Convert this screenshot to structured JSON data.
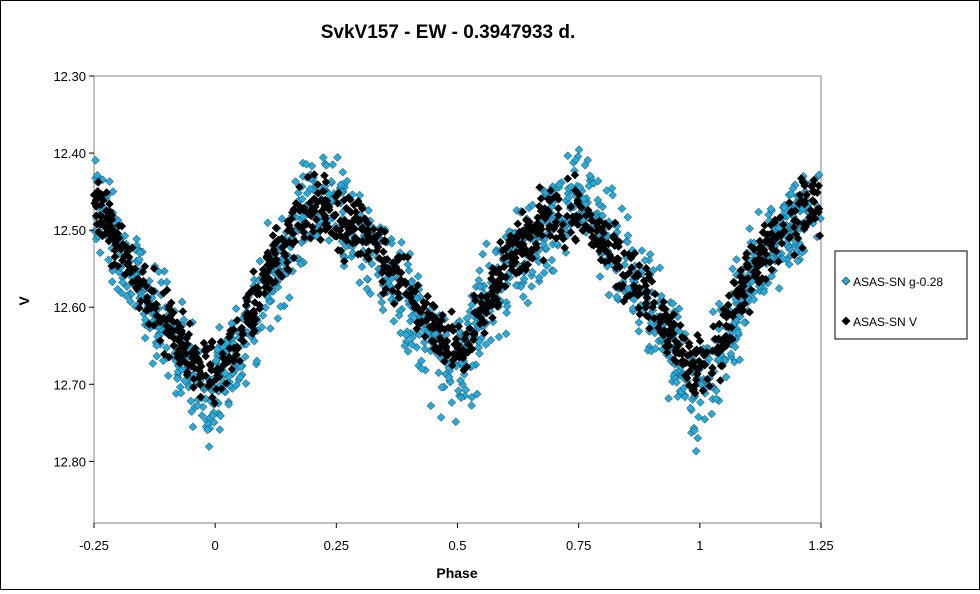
{
  "chart_data": {
    "type": "scatter",
    "title": "SvkV157 - EW - 0.3947933  d.",
    "xlabel": "Phase",
    "ylabel": "V",
    "xlim": [
      -0.25,
      1.25
    ],
    "ylim": [
      12.3,
      12.88
    ],
    "y_inverted": true,
    "grid": false,
    "legend_position": "right",
    "x_ticks": [
      "-0.25",
      "0",
      "0.25",
      "0.5",
      "0.75",
      "1",
      "1.25"
    ],
    "x_tick_values": [
      -0.25,
      0,
      0.25,
      0.5,
      0.75,
      1,
      1.25
    ],
    "y_ticks": [
      "12.30",
      "12.40",
      "12.50",
      "12.60",
      "12.70",
      "12.80"
    ],
    "y_tick_values": [
      12.3,
      12.4,
      12.5,
      12.6,
      12.7,
      12.8
    ],
    "series": [
      {
        "name": "ASAS-SN g-0.28",
        "color": "#29a9d8",
        "marker": "diamond",
        "x": [
          -0.25,
          -0.22,
          -0.19,
          -0.16,
          -0.13,
          -0.1,
          -0.08,
          -0.06,
          -0.04,
          -0.02,
          0.0,
          0.02,
          0.04,
          0.06,
          0.08,
          0.1,
          0.12,
          0.15,
          0.18,
          0.2,
          0.22,
          0.25,
          0.27,
          0.3,
          0.32,
          0.35,
          0.38,
          0.4,
          0.42,
          0.44,
          0.46,
          0.48,
          0.5,
          0.52,
          0.54,
          0.56,
          0.58,
          0.6,
          0.62,
          0.65,
          0.68,
          0.7,
          0.72,
          0.75,
          0.77,
          0.8,
          0.82,
          0.85,
          0.88,
          0.9,
          0.92,
          0.94,
          0.96,
          0.98,
          1.0,
          1.02,
          1.04,
          1.06,
          1.08,
          1.1,
          1.12,
          1.15,
          1.18,
          1.2,
          1.22,
          1.25
        ],
        "y": [
          12.46,
          12.5,
          12.54,
          12.56,
          12.6,
          12.63,
          12.65,
          12.67,
          12.7,
          12.72,
          12.7,
          12.69,
          12.66,
          12.64,
          12.61,
          12.58,
          12.55,
          12.52,
          12.48,
          12.46,
          12.47,
          12.45,
          12.48,
          12.5,
          12.52,
          12.55,
          12.57,
          12.6,
          12.61,
          12.64,
          12.66,
          12.68,
          12.67,
          12.66,
          12.63,
          12.6,
          12.58,
          12.56,
          12.53,
          12.52,
          12.5,
          12.48,
          12.47,
          12.46,
          12.47,
          12.5,
          12.52,
          12.55,
          12.58,
          12.6,
          12.63,
          12.65,
          12.67,
          12.7,
          12.72,
          12.7,
          12.67,
          12.63,
          12.6,
          12.57,
          12.55,
          12.52,
          12.5,
          12.48,
          12.47,
          12.46
        ],
        "y_spread": 0.032
      },
      {
        "name": "ASAS-SN V",
        "color": "#000000",
        "marker": "diamond",
        "x": [
          -0.25,
          -0.22,
          -0.19,
          -0.16,
          -0.13,
          -0.1,
          -0.08,
          -0.06,
          -0.04,
          -0.02,
          0.0,
          0.02,
          0.04,
          0.06,
          0.08,
          0.1,
          0.12,
          0.15,
          0.18,
          0.2,
          0.22,
          0.25,
          0.27,
          0.3,
          0.32,
          0.35,
          0.38,
          0.4,
          0.42,
          0.44,
          0.46,
          0.48,
          0.5,
          0.52,
          0.54,
          0.56,
          0.58,
          0.6,
          0.62,
          0.65,
          0.68,
          0.7,
          0.72,
          0.75,
          0.77,
          0.8,
          0.82,
          0.85,
          0.88,
          0.9,
          0.92,
          0.94,
          0.96,
          0.98,
          1.0,
          1.02,
          1.04,
          1.06,
          1.08,
          1.1,
          1.12,
          1.15,
          1.18,
          1.2,
          1.22,
          1.25
        ],
        "y": [
          12.47,
          12.49,
          12.53,
          12.56,
          12.59,
          12.62,
          12.64,
          12.66,
          12.67,
          12.68,
          12.68,
          12.67,
          12.65,
          12.62,
          12.6,
          12.57,
          12.54,
          12.51,
          12.48,
          12.47,
          12.47,
          12.48,
          12.49,
          12.5,
          12.52,
          12.54,
          12.56,
          12.58,
          12.6,
          12.62,
          12.63,
          12.64,
          12.65,
          12.64,
          12.62,
          12.59,
          12.57,
          12.55,
          12.53,
          12.51,
          12.49,
          12.48,
          12.48,
          12.48,
          12.49,
          12.51,
          12.53,
          12.55,
          12.58,
          12.6,
          12.62,
          12.64,
          12.66,
          12.68,
          12.68,
          12.67,
          12.65,
          12.62,
          12.59,
          12.56,
          12.54,
          12.52,
          12.5,
          12.48,
          12.47,
          12.47
        ],
        "y_spread": 0.02
      }
    ]
  }
}
